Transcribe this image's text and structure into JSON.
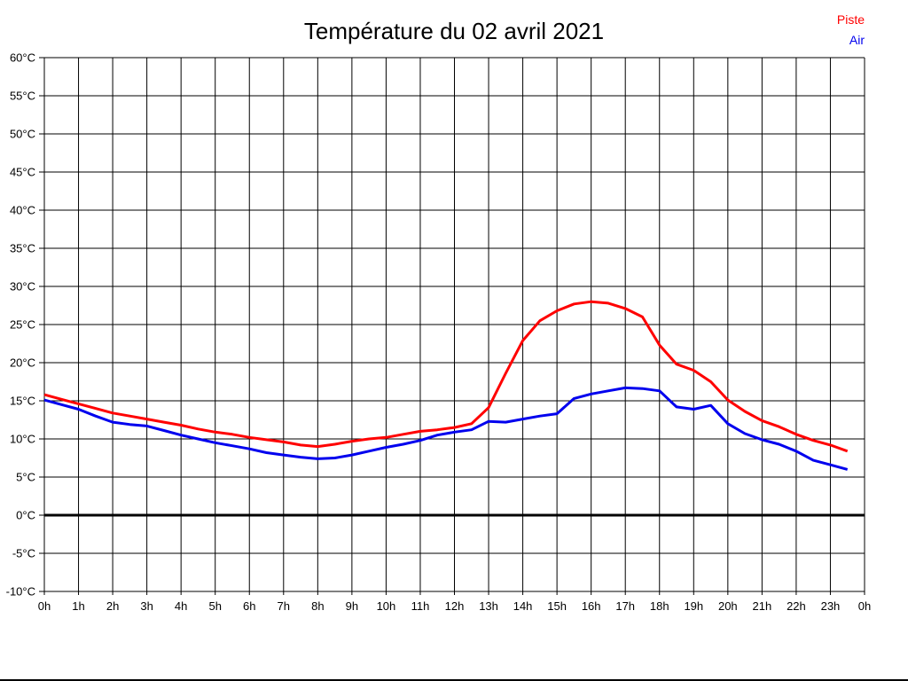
{
  "title": "Température du 02 avril 2021",
  "legend": {
    "piste": {
      "label": "Piste",
      "color": "#ff0000"
    },
    "air": {
      "label": "Air",
      "color": "#0000ee"
    }
  },
  "colors": {
    "grid": "#000000",
    "zero_line": "#000000",
    "background": "#ffffff"
  },
  "chart_data": {
    "type": "line",
    "title": "Température du 02 avril 2021",
    "xlabel": "",
    "ylabel": "",
    "xlim": [
      0,
      24
    ],
    "ylim": [
      -10,
      60
    ],
    "xtick_step": 1,
    "ytick_step": 5,
    "xtick_suffix": "h",
    "ytick_suffix": "°C",
    "grid": true,
    "zero_line_bold": true,
    "legend_position": "top-right",
    "x": [
      0,
      0.5,
      1,
      1.5,
      2,
      2.5,
      3,
      3.5,
      4,
      4.5,
      5,
      5.5,
      6,
      6.5,
      7,
      7.5,
      8,
      8.5,
      9,
      9.5,
      10,
      10.5,
      11,
      11.5,
      12,
      12.5,
      13,
      13.5,
      14,
      14.5,
      15,
      15.5,
      16,
      16.5,
      17,
      17.5,
      18,
      18.5,
      19,
      19.5,
      20,
      20.5,
      21,
      21.5,
      22,
      22.5,
      23,
      23.5
    ],
    "series": [
      {
        "name": "Piste",
        "color": "#ff0000",
        "values": [
          15.8,
          15.2,
          14.6,
          14.0,
          13.4,
          13.0,
          12.6,
          12.2,
          11.8,
          11.3,
          10.9,
          10.6,
          10.2,
          9.9,
          9.6,
          9.2,
          9.0,
          9.3,
          9.7,
          10.0,
          10.2,
          10.6,
          11.0,
          11.2,
          11.5,
          12.0,
          14.1,
          18.6,
          22.9,
          25.5,
          26.8,
          27.7,
          28.0,
          27.8,
          27.1,
          26.0,
          22.3,
          19.8,
          19.0,
          17.5,
          15.1,
          13.6,
          12.4,
          11.6,
          10.6,
          9.8,
          9.2,
          8.4
        ]
      },
      {
        "name": "Air",
        "color": "#0000ee",
        "values": [
          15.1,
          14.5,
          13.9,
          13.0,
          12.2,
          11.9,
          11.7,
          11.1,
          10.5,
          10.0,
          9.5,
          9.1,
          8.7,
          8.2,
          7.9,
          7.6,
          7.4,
          7.5,
          7.9,
          8.4,
          8.9,
          9.3,
          9.8,
          10.5,
          10.9,
          11.2,
          12.3,
          12.2,
          12.6,
          13.0,
          13.3,
          15.3,
          15.9,
          16.3,
          16.7,
          16.6,
          16.3,
          14.2,
          13.9,
          14.4,
          12.0,
          10.7,
          9.9,
          9.3,
          8.4,
          7.2,
          6.6,
          6.0
        ]
      }
    ]
  }
}
